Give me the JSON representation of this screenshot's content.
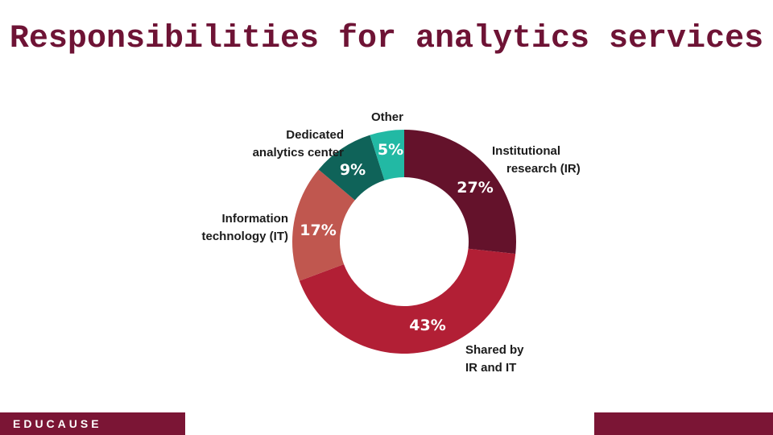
{
  "slide": {
    "title": "Responsibilities for analytics services",
    "brand": "EDUCAUSE"
  },
  "colors": {
    "title": "#6e1335",
    "footer_bar": "#7b1535"
  },
  "chart_data": {
    "type": "pie",
    "style": "donut",
    "title": "",
    "start": "top, clockwise",
    "slices": [
      {
        "label": "Institutional research (IR)",
        "label_lines": [
          "Institutional",
          "research (IR)"
        ],
        "value": 27,
        "display": "27%",
        "color": "#64122b"
      },
      {
        "label": "Shared by IR and IT",
        "label_lines": [
          "Shared by",
          "IR and IT"
        ],
        "value": 43,
        "display": "43%",
        "color": "#b21f35"
      },
      {
        "label": "Information technology (IT)",
        "label_lines": [
          "Information",
          "technology (IT)"
        ],
        "value": 17,
        "display": "17%",
        "color": "#c0574f"
      },
      {
        "label": "Dedicated analytics center",
        "label_lines": [
          "Dedicated",
          "analytics center"
        ],
        "value": 9,
        "display": "9%",
        "color": "#0f6359"
      },
      {
        "label": "Other",
        "label_lines": [
          "Other"
        ],
        "value": 5,
        "display": "5%",
        "color": "#22b9a4"
      }
    ]
  }
}
